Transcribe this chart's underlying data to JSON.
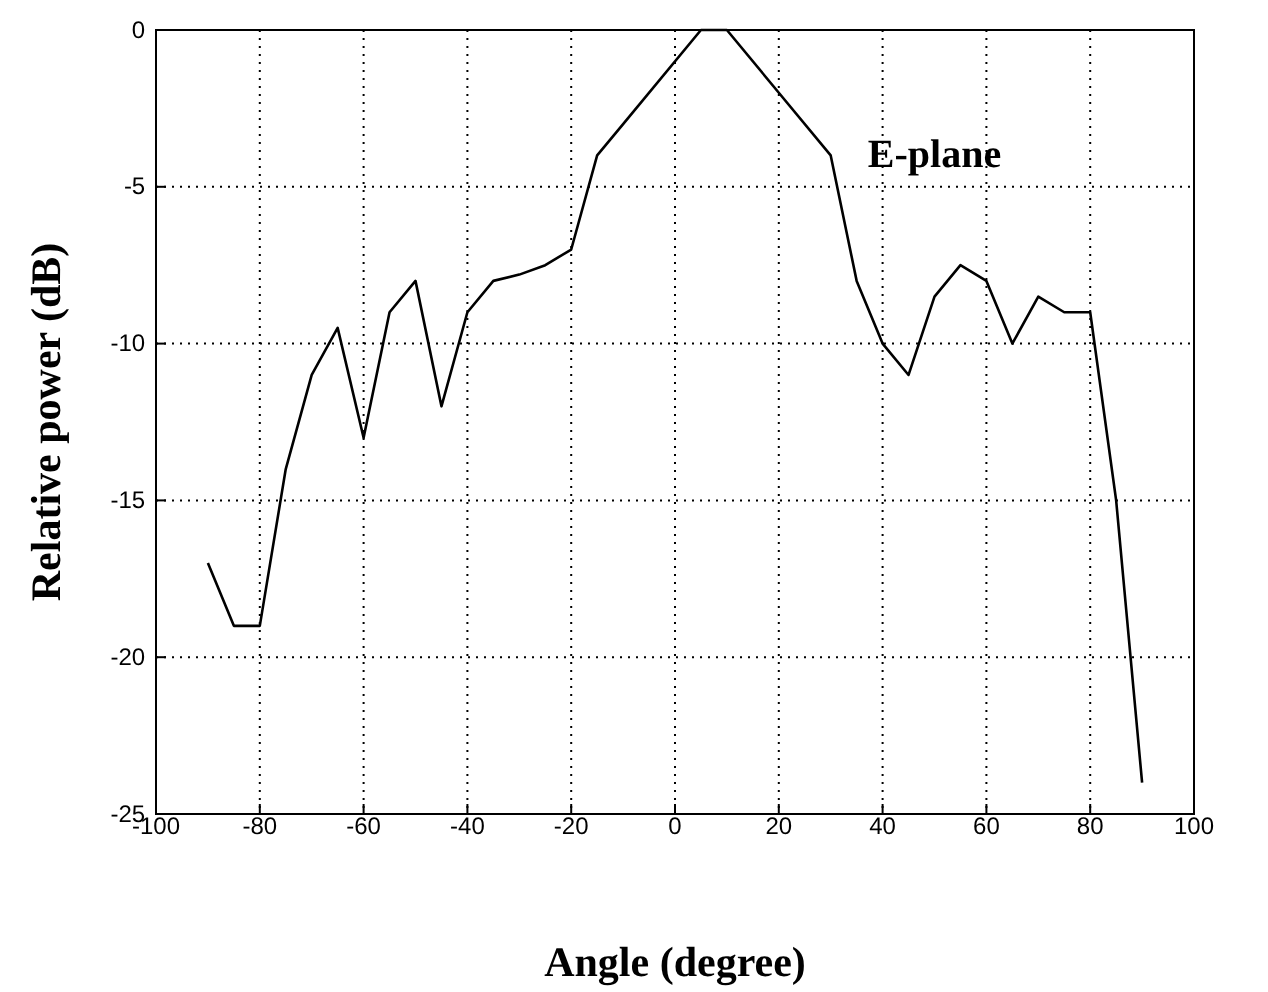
{
  "chart_data": {
    "type": "line",
    "xlabel": "Angle (degree)",
    "ylabel": "Relative power (dB)",
    "x": [
      -90,
      -85,
      -80,
      -75,
      -70,
      -65,
      -60,
      -55,
      -50,
      -45,
      -40,
      -35,
      -30,
      -25,
      -20,
      -15,
      -10,
      5,
      10,
      20,
      30,
      35,
      40,
      45,
      50,
      55,
      60,
      65,
      70,
      75,
      80,
      85,
      90
    ],
    "series": [
      {
        "color": "#000000",
        "values": [
          -17,
          -19,
          -19,
          -14,
          -11,
          -9.5,
          -13,
          -9,
          -8,
          -12,
          -9,
          -8,
          -7.8,
          -7.5,
          -7,
          -4,
          -3,
          0,
          0,
          -2,
          -4,
          -8,
          -10,
          -11,
          -8.5,
          -7.5,
          -8,
          -10,
          -8.5,
          -9,
          -9,
          -15,
          -24
        ]
      }
    ],
    "xlim": [
      -100,
      100
    ],
    "xticks": [
      -100,
      -80,
      -60,
      -40,
      -20,
      0,
      20,
      40,
      60,
      80,
      100
    ],
    "ylim": [
      -25,
      0
    ],
    "yticks": [
      -25,
      -20,
      -15,
      -10,
      -5,
      0
    ],
    "grid": true,
    "marker": "none",
    "line_style": "solid",
    "annotations": [
      "E-plane"
    ]
  }
}
